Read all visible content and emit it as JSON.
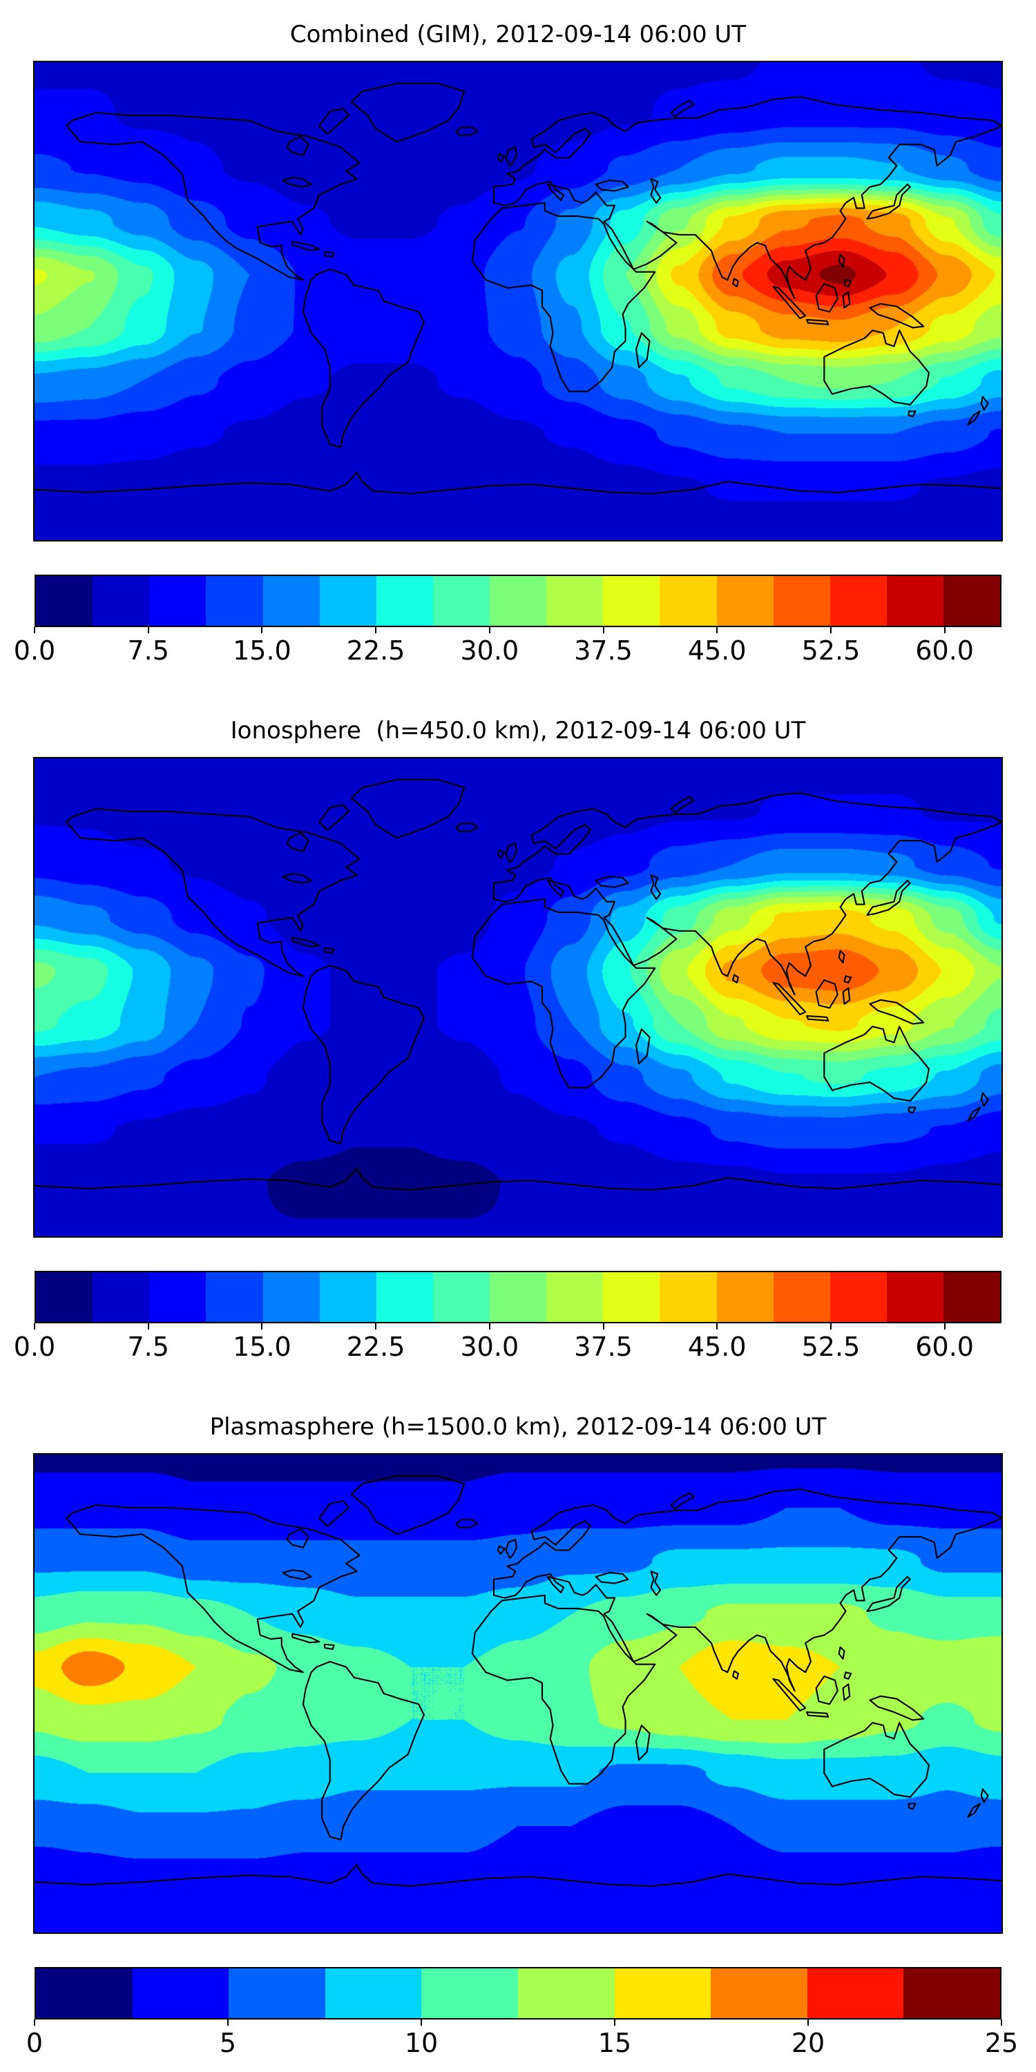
{
  "figure": {
    "background": "#ffffff",
    "n_panels": 3
  },
  "chart_data": [
    {
      "type": "heatmap",
      "title": "Combined (GIM), 2012-09-14 06:00 UT",
      "colormap": "jet",
      "projection": "equirectangular",
      "lon_range": [
        -180,
        180
      ],
      "lat_range": [
        -90,
        90
      ],
      "grid_lon_step_deg": 20,
      "grid_lat_step_deg": 20,
      "vmin": 0,
      "vmax": 63.75,
      "level_step": 3.75,
      "n_bands": 17,
      "colorbar_orientation": "horizontal",
      "colorbar_tick_values": [
        0,
        7.5,
        15,
        22.5,
        30,
        37.5,
        45,
        52.5,
        60
      ],
      "colorbar_tick_labels": [
        "0.0",
        "7.5",
        "15.0",
        "22.5",
        "30.0",
        "37.5",
        "45.0",
        "52.5",
        "60.0"
      ],
      "values": [
        [
          7,
          7,
          7,
          7,
          7,
          7,
          7,
          7,
          7,
          7,
          7,
          7,
          7,
          7,
          8,
          8,
          8,
          7,
          7
        ],
        [
          8,
          8,
          7,
          7,
          6,
          6,
          5,
          5,
          5,
          6,
          6,
          7,
          8,
          9,
          10,
          10,
          10,
          9,
          8
        ],
        [
          12,
          11,
          10,
          8,
          7,
          6,
          5,
          5,
          6,
          7,
          9,
          12,
          15,
          18,
          20,
          20,
          19,
          16,
          13
        ],
        [
          22,
          20,
          17,
          13,
          10,
          8,
          7,
          7,
          8,
          11,
          16,
          24,
          33,
          42,
          48,
          50,
          47,
          38,
          27
        ],
        [
          38,
          34,
          27,
          20,
          15,
          11,
          9,
          9,
          10,
          14,
          20,
          30,
          42,
          52,
          58,
          61,
          56,
          48,
          41
        ],
        [
          33,
          30,
          25,
          19,
          14,
          11,
          9,
          9,
          10,
          13,
          18,
          26,
          35,
          43,
          47,
          48,
          45,
          40,
          35
        ],
        [
          18,
          17,
          15,
          12,
          10,
          8,
          7,
          7,
          8,
          10,
          13,
          17,
          22,
          27,
          30,
          31,
          30,
          26,
          21
        ],
        [
          10,
          10,
          9,
          8,
          7,
          6,
          6,
          6,
          6,
          7,
          8,
          10,
          12,
          14,
          15,
          15,
          15,
          13,
          11
        ],
        [
          6,
          6,
          6,
          5,
          5,
          4,
          4,
          4,
          4,
          5,
          5,
          6,
          7,
          8,
          8,
          8,
          8,
          7,
          6
        ],
        [
          5,
          5,
          5,
          5,
          5,
          5,
          5,
          5,
          5,
          5,
          5,
          5,
          5,
          5,
          5,
          5,
          5,
          5,
          5
        ]
      ]
    },
    {
      "type": "heatmap",
      "title": "Ionosphere  (h=450.0 km), 2012-09-14 06:00 UT",
      "colormap": "jet",
      "projection": "equirectangular",
      "lon_range": [
        -180,
        180
      ],
      "lat_range": [
        -90,
        90
      ],
      "grid_lon_step_deg": 20,
      "grid_lat_step_deg": 20,
      "vmin": 0,
      "vmax": 63.75,
      "level_step": 3.75,
      "n_bands": 17,
      "colorbar_orientation": "horizontal",
      "colorbar_tick_values": [
        0,
        7.5,
        15,
        22.5,
        30,
        37.5,
        45,
        52.5,
        60
      ],
      "colorbar_tick_labels": [
        "0.0",
        "7.5",
        "15.0",
        "22.5",
        "30.0",
        "37.5",
        "45.0",
        "52.5",
        "60.0"
      ],
      "values": [
        [
          6,
          6,
          6,
          6,
          6,
          6,
          6,
          6,
          6,
          6,
          6,
          6,
          6,
          6,
          6,
          6,
          6,
          6,
          6
        ],
        [
          7,
          7,
          6,
          6,
          5,
          5,
          4,
          4,
          4,
          5,
          5,
          6,
          7,
          7,
          8,
          8,
          8,
          7,
          7
        ],
        [
          10,
          9,
          8,
          7,
          6,
          5,
          4,
          4,
          5,
          6,
          8,
          10,
          13,
          15,
          17,
          17,
          16,
          13,
          11
        ],
        [
          18,
          16,
          13,
          10,
          8,
          6,
          5,
          5,
          6,
          9,
          13,
          20,
          28,
          36,
          42,
          43,
          40,
          32,
          22
        ],
        [
          31,
          28,
          22,
          16,
          12,
          8,
          7,
          7,
          8,
          11,
          17,
          26,
          37,
          46,
          51,
          52,
          48,
          41,
          34
        ],
        [
          27,
          25,
          21,
          15,
          11,
          8,
          7,
          7,
          8,
          10,
          15,
          22,
          30,
          37,
          41,
          42,
          39,
          34,
          29
        ],
        [
          15,
          14,
          12,
          10,
          8,
          6,
          5,
          5,
          6,
          8,
          10,
          14,
          18,
          23,
          26,
          27,
          25,
          22,
          17
        ],
        [
          8,
          8,
          7,
          6,
          6,
          5,
          4,
          4,
          5,
          6,
          7,
          8,
          10,
          12,
          13,
          13,
          12,
          11,
          9
        ],
        [
          5,
          5,
          5,
          4,
          4,
          3,
          3,
          3,
          3,
          4,
          4,
          5,
          6,
          6,
          7,
          7,
          7,
          6,
          5
        ],
        [
          4,
          4,
          4,
          4,
          4,
          4,
          4,
          4,
          4,
          4,
          4,
          4,
          4,
          4,
          4,
          4,
          4,
          4,
          4
        ]
      ]
    },
    {
      "type": "heatmap",
      "title": "Plasmasphere (h=1500.0 km), 2012-09-14 06:00 UT",
      "colormap": "jet",
      "projection": "equirectangular",
      "lon_range": [
        -180,
        180
      ],
      "lat_range": [
        -90,
        90
      ],
      "grid_lon_step_deg": 20,
      "grid_lat_step_deg": 20,
      "vmin": 0,
      "vmax": 25,
      "level_step": 2.5,
      "n_bands": 10,
      "colorbar_orientation": "horizontal",
      "colorbar_tick_values": [
        0,
        5,
        10,
        15,
        20,
        25
      ],
      "colorbar_tick_labels": [
        "0",
        "5",
        "10",
        "15",
        "20",
        "25"
      ],
      "values": [
        [
          2,
          2,
          2,
          2,
          2,
          2,
          2,
          2,
          2,
          2,
          2,
          2,
          2,
          2,
          2,
          2,
          2,
          2,
          2
        ],
        [
          4,
          4,
          4,
          3,
          3,
          3,
          3,
          3,
          3,
          4,
          4,
          4,
          4,
          4,
          5,
          5,
          4,
          4,
          4
        ],
        [
          7,
          7,
          7,
          6,
          6,
          6,
          6,
          6,
          6,
          6,
          7,
          7,
          8,
          8,
          8,
          8,
          8,
          7,
          7
        ],
        [
          11,
          12,
          12,
          11,
          10,
          9,
          8,
          8,
          8,
          9,
          10,
          11,
          12,
          13,
          13,
          13,
          12,
          11,
          11
        ],
        [
          16,
          19,
          17,
          15,
          13,
          12,
          11,
          10,
          10,
          11,
          12,
          14,
          15,
          17,
          16,
          15,
          14,
          14,
          15
        ],
        [
          13,
          14,
          14,
          13,
          12,
          11,
          11,
          10,
          10,
          11,
          12,
          13,
          14,
          15,
          15,
          14,
          13,
          12,
          13
        ],
        [
          9,
          10,
          10,
          10,
          9,
          9,
          8,
          8,
          8,
          8,
          8,
          7,
          7,
          8,
          9,
          9,
          9,
          8,
          9
        ],
        [
          6,
          6,
          7,
          7,
          7,
          6,
          6,
          6,
          6,
          5,
          5,
          4,
          4,
          5,
          6,
          6,
          6,
          6,
          6
        ],
        [
          3,
          4,
          4,
          4,
          4,
          4,
          4,
          4,
          4,
          3,
          3,
          3,
          3,
          3,
          4,
          4,
          4,
          4,
          3
        ],
        [
          3,
          3,
          3,
          3,
          3,
          3,
          3,
          3,
          3,
          3,
          3,
          3,
          3,
          3,
          3,
          3,
          3,
          3,
          3
        ]
      ]
    }
  ]
}
